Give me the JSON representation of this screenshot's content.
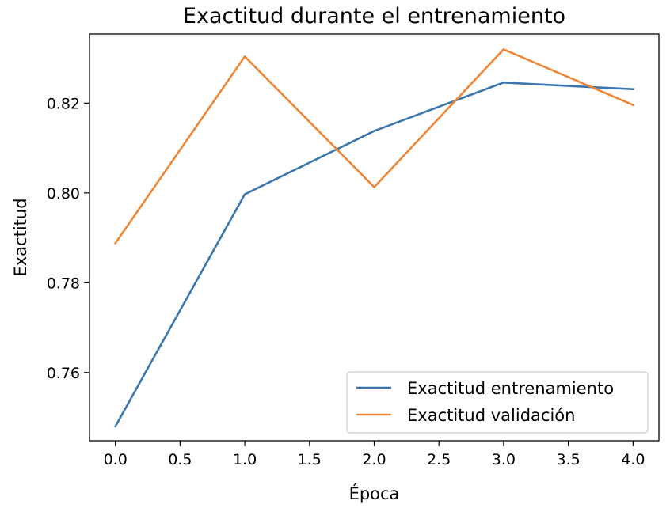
{
  "chart_data": {
    "type": "line",
    "title": "Exactitud durante el entrenamiento",
    "xlabel": "Época",
    "ylabel": "Exactitud",
    "x": [
      0,
      1,
      2,
      3,
      4
    ],
    "xlim": [
      -0.2,
      4.2
    ],
    "ylim": [
      0.7448,
      0.8354
    ],
    "xticks": [
      0.0,
      0.5,
      1.0,
      1.5,
      2.0,
      2.5,
      3.0,
      3.5,
      4.0
    ],
    "xtick_labels": [
      "0.0",
      "0.5",
      "1.0",
      "1.5",
      "2.0",
      "2.5",
      "3.0",
      "3.5",
      "4.0"
    ],
    "yticks": [
      0.76,
      0.78,
      0.8,
      0.82
    ],
    "ytick_labels": [
      "0.76",
      "0.78",
      "0.80",
      "0.82"
    ],
    "grid": false,
    "legend_position": "lower-right",
    "series": [
      {
        "name": "Exactitud entrenamiento",
        "color": "#3b76af",
        "values": [
          0.748,
          0.7997,
          0.8138,
          0.8246,
          0.8231
        ]
      },
      {
        "name": "Exactitud validación",
        "color": "#ef8636",
        "values": [
          0.7888,
          0.8304,
          0.8013,
          0.832,
          0.8196
        ]
      }
    ]
  }
}
